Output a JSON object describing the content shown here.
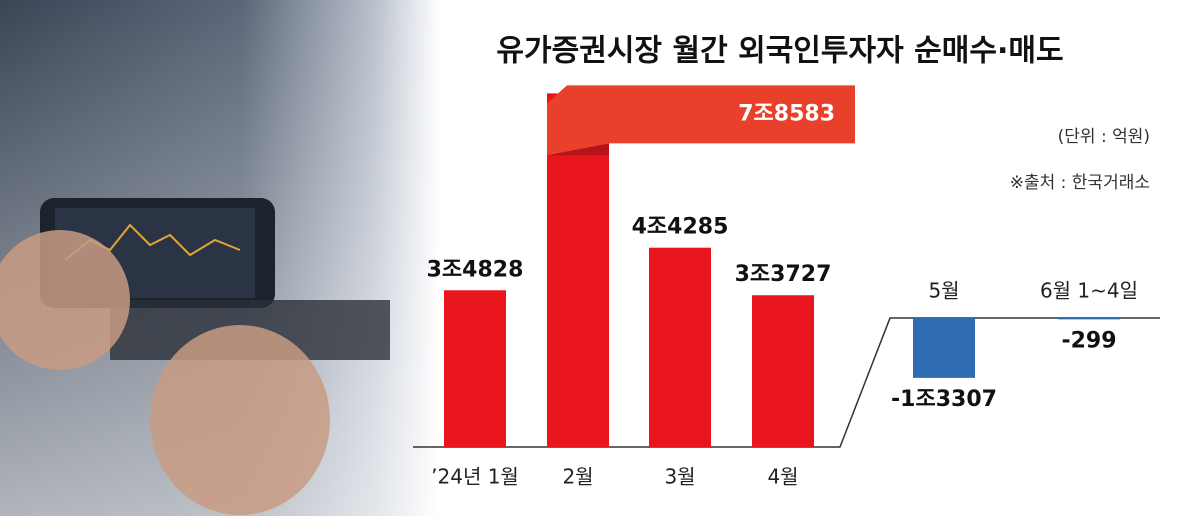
{
  "chart_data": {
    "type": "bar",
    "title": "유가증권시장 월간 외국인투자자 순매수·매도",
    "unit": "(단위 : 억원)",
    "source": "※출처 : 한국거래소",
    "categories": [
      "’24년 1월",
      "2월",
      "3월",
      "4월",
      "5월",
      "6월 1~4일"
    ],
    "values": [
      34828,
      78583,
      44285,
      33727,
      -13307,
      -299
    ],
    "value_labels": [
      "3조4828",
      "7조8583",
      "4조4285",
      "3조3727",
      "-1조3307",
      "-299"
    ],
    "colors": [
      "#e8161c",
      "#e8161c",
      "#e8161c",
      "#e8161c",
      "#2e6db4",
      "#2e6db4"
    ]
  }
}
